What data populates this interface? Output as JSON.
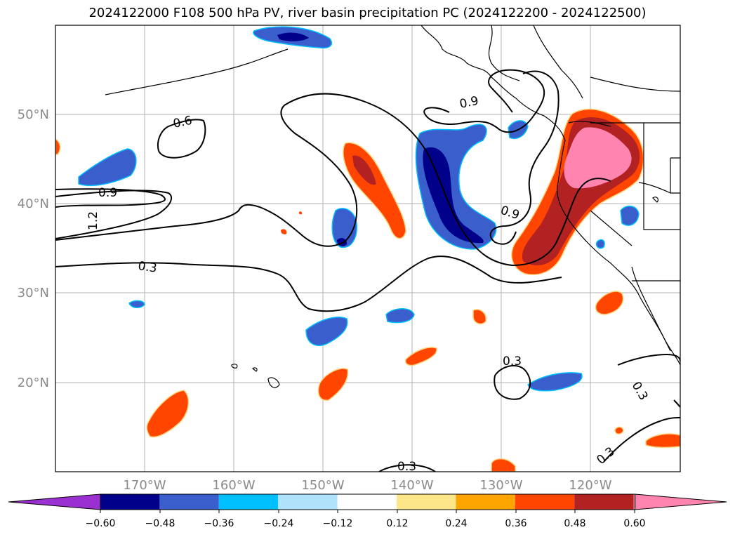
{
  "title": "2024122000 F108 500 hPa PV, river basin precipitation PC (2024122200 - 2024122500)",
  "lat_labels": [
    "50°N",
    "40°N",
    "30°N",
    "20°N"
  ],
  "lon_labels": [
    "170°W",
    "160°W",
    "150°W",
    "140°W",
    "130°W",
    "120°W"
  ],
  "contour_labels": [
    "0.6",
    "0.9",
    "1.2",
    "0.3",
    "0.9",
    "0.9",
    "0.3",
    "0.3",
    "0.3",
    "0.3"
  ],
  "colorbar": {
    "colors": [
      "#9b30d0",
      "#00008b",
      "#3a5fcd",
      "#00bfff",
      "#aee3fb",
      "#ffffff",
      "#fde68a",
      "#ffa500",
      "#ff4500",
      "#b22222",
      "#ff85b0",
      "#ff85b0"
    ],
    "tick_labels": [
      "−0.60",
      "−0.48",
      "−0.36",
      "−0.24",
      "−0.12",
      "0.12",
      "0.24",
      "0.36",
      "0.48",
      "0.60"
    ]
  },
  "palette": {
    "neg_dark": "#00008b",
    "neg_mid": "#3a5fcd",
    "neg_light": "#00bfff",
    "pos_light": "#ffa500",
    "pos_mid": "#ff4500",
    "pos_dark": "#b22222",
    "pos_max": "#ff85b0"
  }
}
